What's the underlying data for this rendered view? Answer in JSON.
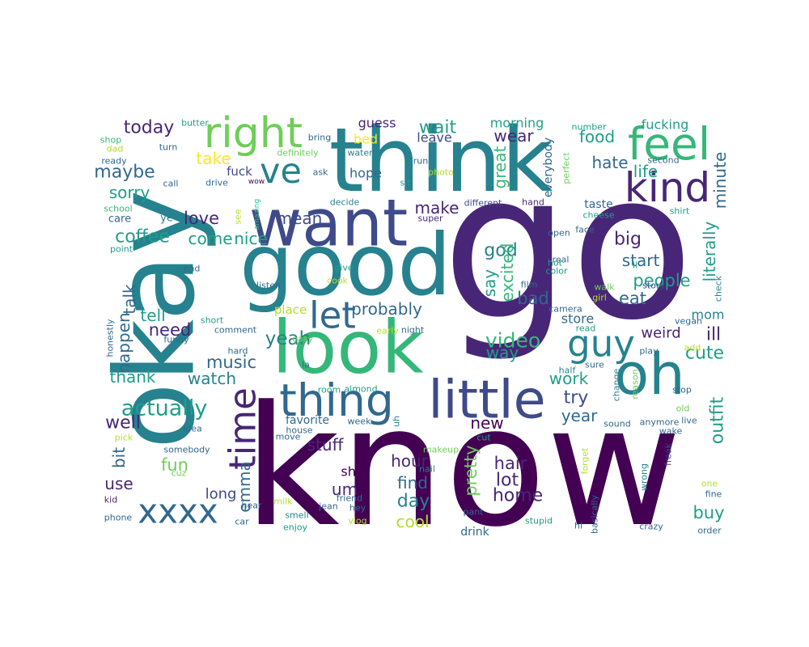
{
  "wordcloud": {
    "colors": {
      "d1": "#440154",
      "d2": "#482677",
      "d3": "#3e4a89",
      "d4": "#31688e",
      "d5": "#26828e",
      "d6": "#1f9e89",
      "d7": "#35b779",
      "d8": "#6ece58",
      "d9": "#b5de2b",
      "d10": "#fde725"
    },
    "words": [
      {
        "text": "go",
        "c": "d2"
      },
      {
        "text": "know",
        "c": "d1"
      },
      {
        "text": "okay",
        "c": "d5"
      },
      {
        "text": "think",
        "c": "d5"
      },
      {
        "text": "good",
        "c": "d5"
      },
      {
        "text": "look",
        "c": "d7"
      },
      {
        "text": "want",
        "c": "d3"
      },
      {
        "text": "right",
        "c": "d8"
      },
      {
        "text": "feel",
        "c": "d7"
      },
      {
        "text": "kind",
        "c": "d2"
      },
      {
        "text": "oh",
        "c": "d5"
      },
      {
        "text": "little",
        "c": "d3"
      },
      {
        "text": "thing",
        "c": "d4"
      },
      {
        "text": "time",
        "c": "d2"
      },
      {
        "text": "ve",
        "c": "d5"
      },
      {
        "text": "let",
        "c": "d4"
      },
      {
        "text": "guy",
        "c": "d5"
      },
      {
        "text": "xxxx",
        "c": "d4"
      },
      {
        "text": "actually",
        "c": "d6"
      },
      {
        "text": "today",
        "c": "d2"
      },
      {
        "text": "take",
        "c": "d10"
      },
      {
        "text": "maybe",
        "c": "d4"
      },
      {
        "text": "sorry",
        "c": "d6"
      },
      {
        "text": "coffee",
        "c": "d6"
      },
      {
        "text": "love",
        "c": "d2"
      },
      {
        "text": "come",
        "c": "d6"
      },
      {
        "text": "nice",
        "c": "d6"
      },
      {
        "text": "mean",
        "c": "d3"
      },
      {
        "text": "probably",
        "c": "d4"
      },
      {
        "text": "yeah",
        "c": "d5"
      },
      {
        "text": "need",
        "c": "d2"
      },
      {
        "text": "tell",
        "c": "d6"
      },
      {
        "text": "talk",
        "c": "d4"
      },
      {
        "text": "happen",
        "c": "d4"
      },
      {
        "text": "music",
        "c": "d4"
      },
      {
        "text": "watch",
        "c": "d5"
      },
      {
        "text": "thank",
        "c": "d6"
      },
      {
        "text": "well",
        "c": "d2"
      },
      {
        "text": "bit",
        "c": "d4"
      },
      {
        "text": "use",
        "c": "d2"
      },
      {
        "text": "fun",
        "c": "d8"
      },
      {
        "text": "emma",
        "c": "d4"
      },
      {
        "text": "long",
        "c": "d3"
      },
      {
        "text": "stuff",
        "c": "d2"
      },
      {
        "text": "um",
        "c": "d2"
      },
      {
        "text": "hour",
        "c": "d2"
      },
      {
        "text": "find",
        "c": "d4"
      },
      {
        "text": "day",
        "c": "d5"
      },
      {
        "text": "cool",
        "c": "d9"
      },
      {
        "text": "video",
        "c": "d7"
      },
      {
        "text": "way",
        "c": "d6"
      },
      {
        "text": "pretty",
        "c": "d8"
      },
      {
        "text": "hair",
        "c": "d2"
      },
      {
        "text": "lot",
        "c": "d2"
      },
      {
        "text": "home",
        "c": "d2"
      },
      {
        "text": "new",
        "c": "d1"
      },
      {
        "text": "year",
        "c": "d4"
      },
      {
        "text": "try",
        "c": "d3"
      },
      {
        "text": "work",
        "c": "d6"
      },
      {
        "text": "wait",
        "c": "d6"
      },
      {
        "text": "wear",
        "c": "d2"
      },
      {
        "text": "great",
        "c": "d7"
      },
      {
        "text": "make",
        "c": "d2"
      },
      {
        "text": "god",
        "c": "d5"
      },
      {
        "text": "say",
        "c": "d6"
      },
      {
        "text": "excited",
        "c": "d7"
      },
      {
        "text": "bad",
        "c": "d4"
      },
      {
        "text": "food",
        "c": "d6"
      },
      {
        "text": "hate",
        "c": "d4"
      },
      {
        "text": "life",
        "c": "d6"
      },
      {
        "text": "big",
        "c": "d2"
      },
      {
        "text": "start",
        "c": "d4"
      },
      {
        "text": "people",
        "c": "d6"
      },
      {
        "text": "eat",
        "c": "d4"
      },
      {
        "text": "literally",
        "c": "d6"
      },
      {
        "text": "minute",
        "c": "d4"
      },
      {
        "text": "fucking",
        "c": "d6"
      },
      {
        "text": "ill",
        "c": "d2"
      },
      {
        "text": "cute",
        "c": "d6"
      },
      {
        "text": "outfit",
        "c": "d6"
      },
      {
        "text": "buy",
        "c": "d6"
      },
      {
        "text": "weird",
        "c": "d2"
      },
      {
        "text": "mom",
        "c": "d5"
      },
      {
        "text": "store",
        "c": "d4"
      },
      {
        "text": "guess",
        "c": "d2"
      },
      {
        "text": "leave",
        "c": "d3"
      },
      {
        "text": "bed",
        "c": "d10"
      },
      {
        "text": "hope",
        "c": "d4"
      },
      {
        "text": "morning",
        "c": "d6"
      },
      {
        "text": "everybody",
        "c": "d4"
      },
      {
        "text": "butter",
        "c": "d6"
      },
      {
        "text": "turn",
        "c": "d4"
      },
      {
        "text": "shop",
        "c": "d7"
      },
      {
        "text": "dad",
        "c": "d9"
      },
      {
        "text": "ready",
        "c": "d4"
      },
      {
        "text": "call",
        "c": "d4"
      },
      {
        "text": "school",
        "c": "d7"
      },
      {
        "text": "care",
        "c": "d4"
      },
      {
        "text": "ye",
        "c": "d5"
      },
      {
        "text": "point",
        "c": "d6"
      },
      {
        "text": "end",
        "c": "d4"
      },
      {
        "text": "honestly",
        "c": "d4"
      },
      {
        "text": "fuck",
        "c": "d3"
      },
      {
        "text": "drive",
        "c": "d4"
      },
      {
        "text": "wow",
        "c": "d1"
      },
      {
        "text": "see",
        "c": "d9"
      },
      {
        "text": "amazing",
        "c": "d7"
      },
      {
        "text": "bring",
        "c": "d4"
      },
      {
        "text": "definitely",
        "c": "d8"
      },
      {
        "text": "ask",
        "c": "d4"
      },
      {
        "text": "decide",
        "c": "d5"
      },
      {
        "text": "water",
        "c": "d5"
      },
      {
        "text": "sit",
        "c": "d6"
      },
      {
        "text": "run",
        "c": "d4"
      },
      {
        "text": "photo",
        "c": "d9"
      },
      {
        "text": "super",
        "c": "d2"
      },
      {
        "text": "different",
        "c": "d3"
      },
      {
        "text": "hand",
        "c": "d2"
      },
      {
        "text": "perfect",
        "c": "d8"
      },
      {
        "text": "number",
        "c": "d6"
      },
      {
        "text": "second",
        "c": "d4"
      },
      {
        "text": "shirt",
        "c": "d6"
      },
      {
        "text": "taste",
        "c": "d4"
      },
      {
        "text": "cheese",
        "c": "d6"
      },
      {
        "text": "face",
        "c": "d4"
      },
      {
        "text": "open",
        "c": "d4"
      },
      {
        "text": "real",
        "c": "d4"
      },
      {
        "text": "hot",
        "c": "d6"
      },
      {
        "text": "color",
        "c": "d6"
      },
      {
        "text": "film",
        "c": "d4"
      },
      {
        "text": "girl",
        "c": "d9"
      },
      {
        "text": "walk",
        "c": "d8"
      },
      {
        "text": "story",
        "c": "d3"
      },
      {
        "text": "ll",
        "c": "d6"
      },
      {
        "text": "check",
        "c": "d5"
      },
      {
        "text": "camera",
        "c": "d4"
      },
      {
        "text": "read",
        "c": "d6"
      },
      {
        "text": "vegan",
        "c": "d4"
      },
      {
        "text": "add",
        "c": "d9"
      },
      {
        "text": "play",
        "c": "d4"
      },
      {
        "text": "sure",
        "c": "d4"
      },
      {
        "text": "half",
        "c": "d5"
      },
      {
        "text": "change",
        "c": "d5"
      },
      {
        "text": "reason",
        "c": "d8"
      },
      {
        "text": "stop",
        "c": "d4"
      },
      {
        "text": "old",
        "c": "d8"
      },
      {
        "text": "live",
        "c": "d4"
      },
      {
        "text": "anymore",
        "c": "d4"
      },
      {
        "text": "wake",
        "c": "d4"
      },
      {
        "text": "sound",
        "c": "d4"
      },
      {
        "text": "freak",
        "c": "d3"
      },
      {
        "text": "wrong",
        "c": "d5"
      },
      {
        "text": "forget",
        "c": "d9"
      },
      {
        "text": "one",
        "c": "d9"
      },
      {
        "text": "fine",
        "c": "d4"
      },
      {
        "text": "order",
        "c": "d4"
      },
      {
        "text": "crazy",
        "c": "d4"
      },
      {
        "text": "hi",
        "c": "d4"
      },
      {
        "text": "basically",
        "c": "d4"
      },
      {
        "text": "stupid",
        "c": "d6"
      },
      {
        "text": "pant",
        "c": "d4"
      },
      {
        "text": "drink",
        "c": "d4"
      },
      {
        "text": "cut",
        "c": "d6"
      },
      {
        "text": "makeup",
        "c": "d8"
      },
      {
        "text": "nail",
        "c": "d5"
      },
      {
        "text": "shit",
        "c": "d1"
      },
      {
        "text": "favorite",
        "c": "d4"
      },
      {
        "text": "week",
        "c": "d4"
      },
      {
        "text": "uh",
        "c": "d5"
      },
      {
        "text": "almond",
        "c": "d6"
      },
      {
        "text": "room",
        "c": "d6"
      },
      {
        "text": "night",
        "c": "d4"
      },
      {
        "text": "early",
        "c": "d9"
      },
      {
        "text": "easy",
        "c": "d8"
      },
      {
        "text": "place",
        "c": "d9"
      },
      {
        "text": "listen",
        "c": "d4"
      },
      {
        "text": "cook",
        "c": "d9"
      },
      {
        "text": "give",
        "c": "d6"
      },
      {
        "text": "la",
        "c": "d4"
      },
      {
        "text": "hard",
        "c": "d4"
      },
      {
        "text": "comment",
        "c": "d4"
      },
      {
        "text": "short",
        "c": "d6"
      },
      {
        "text": "funny",
        "c": "d4"
      },
      {
        "text": "idea",
        "c": "d4"
      },
      {
        "text": "house",
        "c": "d4"
      },
      {
        "text": "move",
        "c": "d4"
      },
      {
        "text": "jean",
        "c": "d4"
      },
      {
        "text": "friend",
        "c": "d4"
      },
      {
        "text": "hey",
        "c": "d4"
      },
      {
        "text": "vlog",
        "c": "d9"
      },
      {
        "text": "milk",
        "c": "d9"
      },
      {
        "text": "smell",
        "c": "d5"
      },
      {
        "text": "enjoy",
        "c": "d6"
      },
      {
        "text": "somebody",
        "c": "d4"
      },
      {
        "text": "hear",
        "c": "d4"
      },
      {
        "text": "car",
        "c": "d4"
      },
      {
        "text": "kid",
        "c": "d2"
      },
      {
        "text": "phone",
        "c": "d4"
      },
      {
        "text": "pick",
        "c": "d9"
      },
      {
        "text": "cuz",
        "c": "d8"
      }
    ]
  }
}
